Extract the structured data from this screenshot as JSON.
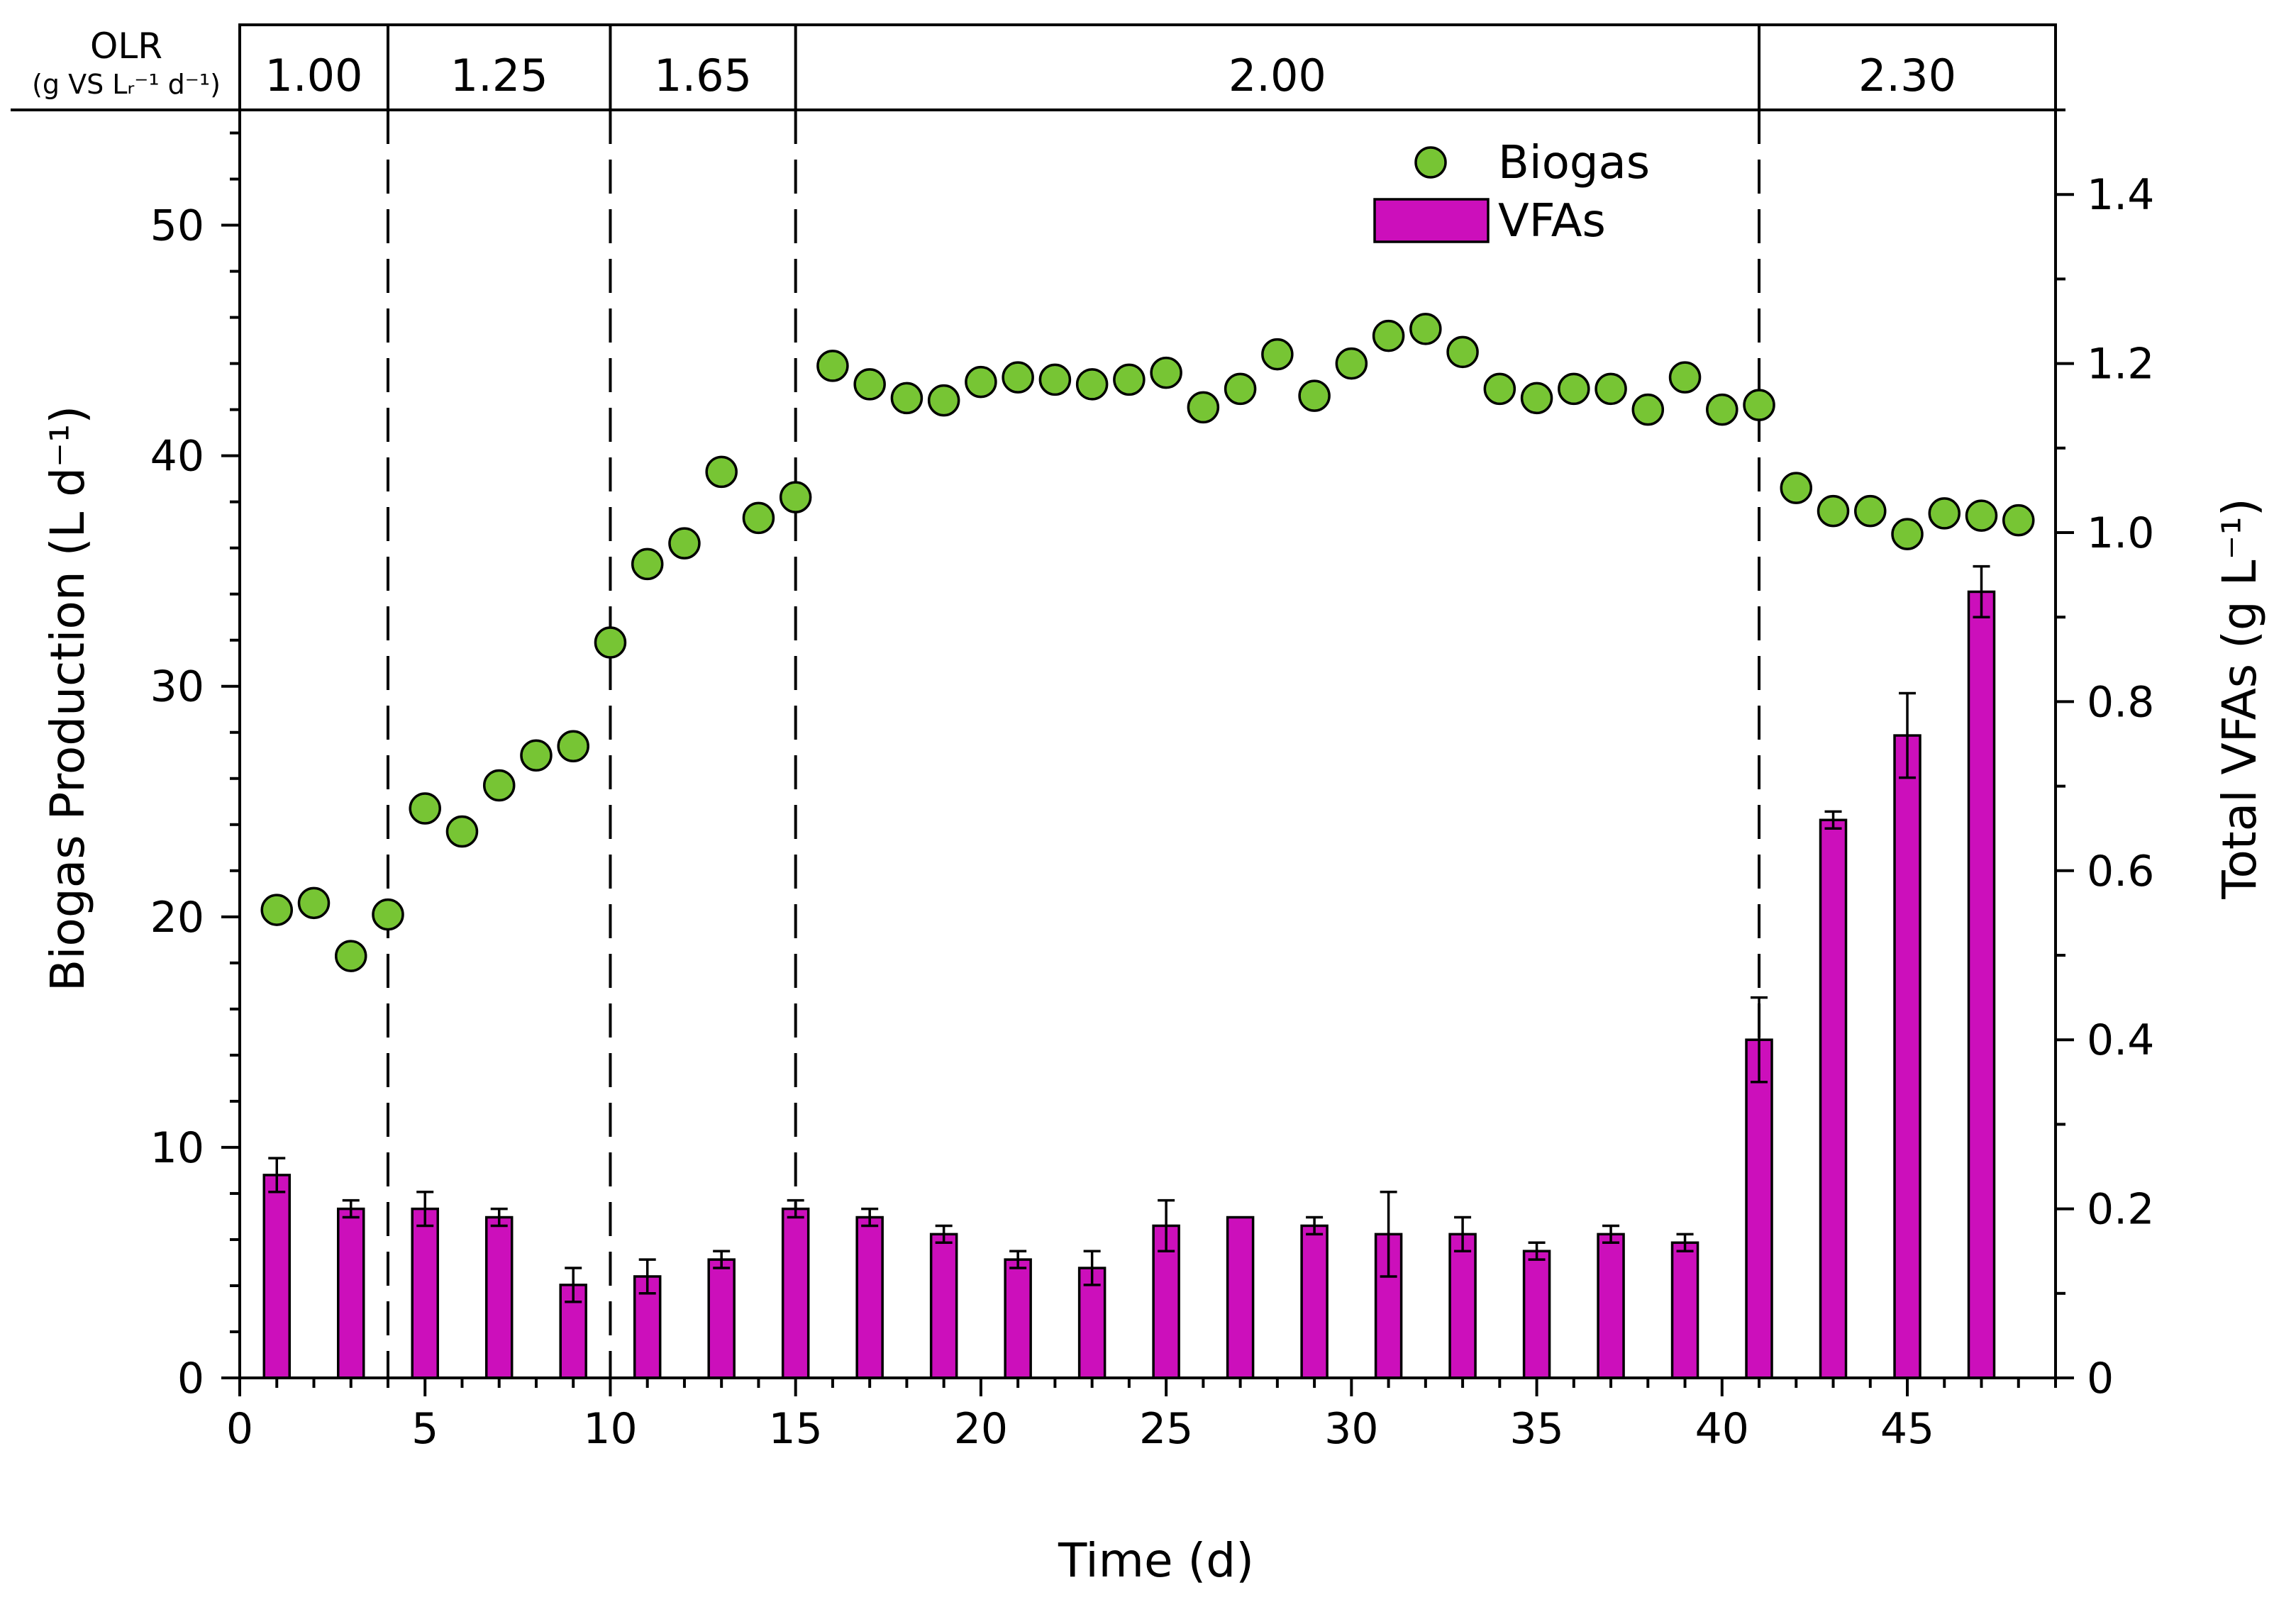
{
  "chart_data": {
    "type": "bar+scatter",
    "xlabel": "Time (d)",
    "ylabel_left": "Biogas Production (L d⁻¹)",
    "ylabel_right": "Total VFAs (g L⁻¹)",
    "xlim": [
      0,
      49
    ],
    "ylim_left": [
      0,
      55
    ],
    "ylim_right": [
      0,
      1.5
    ],
    "x_ticks": [
      0,
      5,
      10,
      15,
      20,
      25,
      30,
      35,
      40,
      45
    ],
    "y_left_ticks": [
      0,
      10,
      20,
      30,
      40,
      50
    ],
    "y_right_ticks": [
      0,
      0.2,
      0.4,
      0.6,
      0.8,
      1.0,
      1.2,
      1.4
    ],
    "y_right_tick_labels": [
      "0",
      "0.2",
      "0.4",
      "0.6",
      "0.8",
      "1.0",
      "1.2",
      "1.4"
    ],
    "olr": {
      "label": "OLR",
      "unit": "(g VS Lᵣ⁻¹ d⁻¹)",
      "boundaries": [
        4,
        10,
        15,
        41
      ],
      "segments": [
        {
          "start": 0,
          "end": 4,
          "label": "1.00"
        },
        {
          "start": 4,
          "end": 10,
          "label": "1.25"
        },
        {
          "start": 10,
          "end": 15,
          "label": "1.65"
        },
        {
          "start": 15,
          "end": 41,
          "label": "2.00"
        },
        {
          "start": 41,
          "end": 49,
          "label": "2.30"
        }
      ]
    },
    "legend": {
      "position": "top-center",
      "items": [
        {
          "name": "Biogas",
          "type": "marker"
        },
        {
          "name": "VFAs",
          "type": "bar"
        }
      ]
    },
    "biogas": {
      "name": "Biogas",
      "color": "#77c534",
      "x": [
        1,
        2,
        3,
        4,
        5,
        6,
        7,
        8,
        9,
        10,
        11,
        12,
        13,
        14,
        15,
        16,
        17,
        18,
        19,
        20,
        21,
        22,
        23,
        24,
        25,
        26,
        27,
        28,
        29,
        30,
        31,
        32,
        33,
        34,
        35,
        36,
        37,
        38,
        39,
        40,
        41,
        42,
        43,
        44,
        45,
        46,
        47,
        48
      ],
      "y": [
        20.3,
        20.6,
        18.3,
        20.1,
        24.7,
        23.7,
        25.7,
        27.0,
        27.4,
        31.9,
        35.3,
        36.2,
        39.3,
        37.3,
        38.2,
        43.9,
        43.1,
        42.5,
        42.4,
        43.2,
        43.4,
        43.3,
        43.1,
        43.3,
        43.6,
        42.1,
        42.9,
        44.4,
        42.6,
        44.0,
        45.2,
        45.5,
        44.5,
        42.9,
        42.5,
        42.9,
        42.9,
        42.0,
        43.4,
        42.0,
        42.2,
        38.6,
        37.6,
        37.6,
        36.6,
        37.5,
        37.4,
        37.2
      ]
    },
    "vfas": {
      "name": "VFAs",
      "color": "#cc0fbb",
      "x": [
        1,
        3,
        5,
        7,
        9,
        11,
        13,
        15,
        17,
        19,
        21,
        23,
        25,
        27,
        29,
        31,
        33,
        35,
        37,
        39,
        41,
        43,
        45,
        47
      ],
      "y": [
        0.24,
        0.2,
        0.2,
        0.19,
        0.11,
        0.12,
        0.14,
        0.2,
        0.19,
        0.17,
        0.14,
        0.13,
        0.18,
        0.19,
        0.18,
        0.17,
        0.17,
        0.15,
        0.17,
        0.16,
        0.4,
        0.66,
        0.76,
        0.93
      ],
      "err": [
        0.02,
        0.01,
        0.02,
        0.01,
        0.02,
        0.02,
        0.01,
        0.01,
        0.01,
        0.01,
        0.01,
        0.02,
        0.03,
        0.0,
        0.01,
        0.05,
        0.02,
        0.01,
        0.01,
        0.01,
        0.05,
        0.01,
        0.05,
        0.03
      ]
    }
  }
}
